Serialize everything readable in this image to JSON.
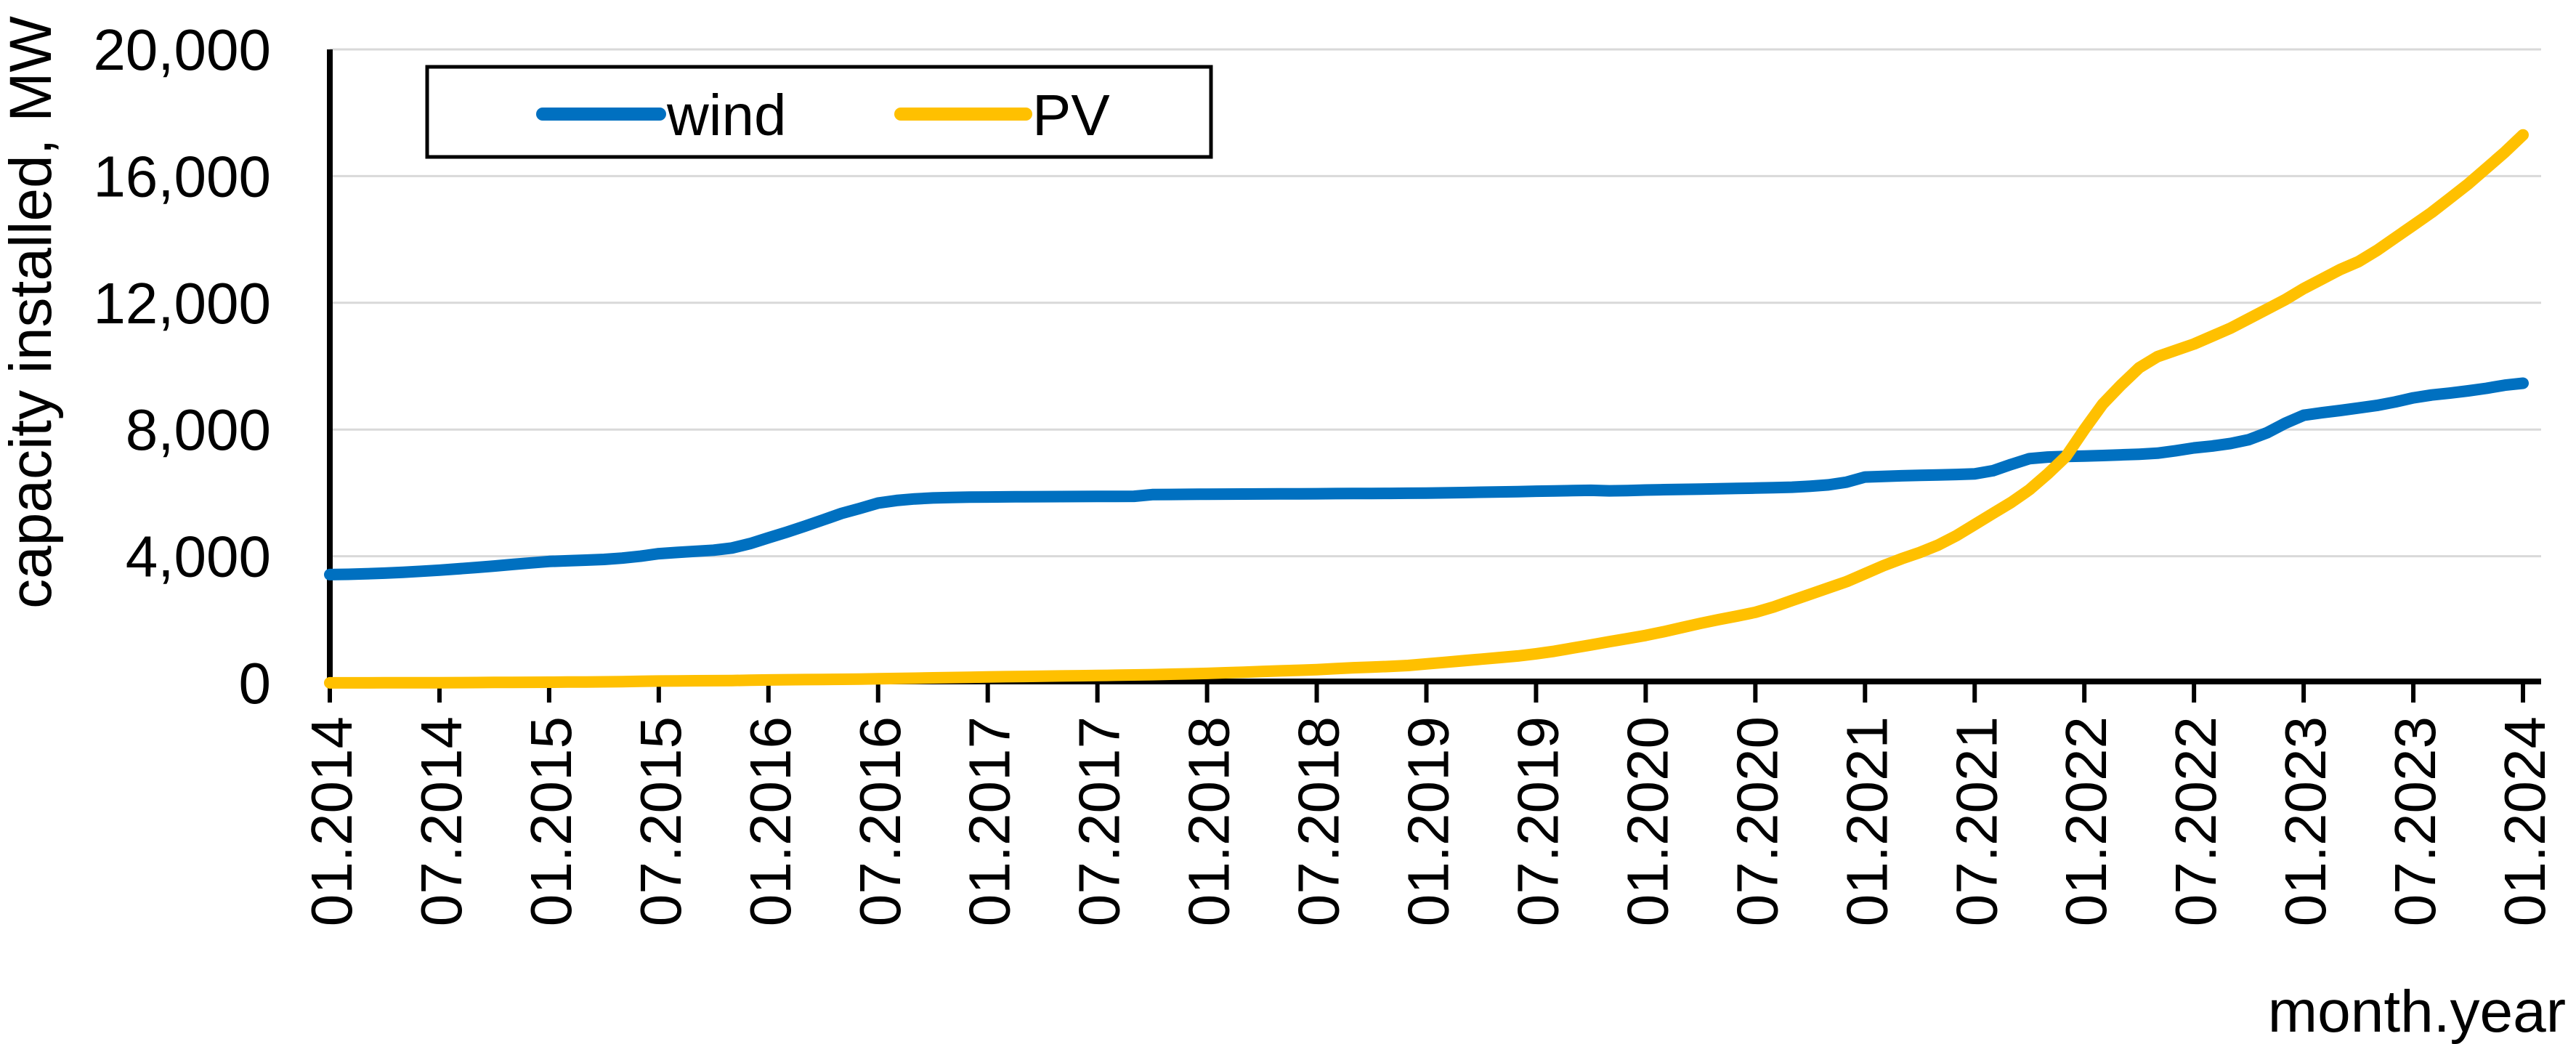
{
  "chart_data": {
    "type": "line",
    "title": "",
    "xlabel": "month.year",
    "ylabel": "capacity installed, MW",
    "x_start": "01.2014",
    "x_step": "1 month",
    "points": 121,
    "months_span": 120,
    "xlim_months": [
      0,
      120
    ],
    "ylim": [
      0,
      20000
    ],
    "y_ticks": [
      0,
      4000,
      8000,
      12000,
      16000,
      20000
    ],
    "y_tick_labels": [
      "0",
      "4,000",
      "8,000",
      "12,000",
      "16,000",
      "20,000"
    ],
    "x_tick_interval_months": 6,
    "x_tick_labels": [
      "01.2014",
      "07.2014",
      "01.2015",
      "07.2015",
      "01.2016",
      "07.2016",
      "01.2017",
      "07.2017",
      "01.2018",
      "07.2018",
      "01.2019",
      "07.2019",
      "01.2020",
      "07.2020",
      "01.2021",
      "07.2021",
      "01.2022",
      "07.2022",
      "01.2023",
      "07.2023",
      "01.2024"
    ],
    "grid": "horizontal",
    "gridline_color": "#D9D9D9",
    "axis_color": "#000000",
    "background_color": "#FFFFFF",
    "legend_position": "top-left-inside-framed",
    "series": [
      {
        "name": "wind",
        "color": "#0070C0",
        "values": [
          3420,
          3430,
          3445,
          3465,
          3490,
          3525,
          3560,
          3600,
          3645,
          3690,
          3740,
          3790,
          3835,
          3855,
          3875,
          3900,
          3940,
          4000,
          4080,
          4120,
          4155,
          4190,
          4260,
          4400,
          4580,
          4760,
          4950,
          5150,
          5350,
          5510,
          5680,
          5760,
          5810,
          5840,
          5855,
          5865,
          5870,
          5875,
          5878,
          5880,
          5882,
          5885,
          5888,
          5890,
          5892,
          5945,
          5950,
          5955,
          5958,
          5960,
          5963,
          5965,
          5968,
          5970,
          5973,
          5976,
          5979,
          5982,
          5985,
          5988,
          5992,
          6000,
          6010,
          6020,
          6030,
          6040,
          6052,
          6062,
          6072,
          6080,
          6065,
          6072,
          6090,
          6100,
          6110,
          6120,
          6130,
          6142,
          6152,
          6162,
          6180,
          6210,
          6252,
          6340,
          6500,
          6520,
          6540,
          6555,
          6565,
          6580,
          6600,
          6700,
          6900,
          7080,
          7130,
          7150,
          7160,
          7180,
          7200,
          7220,
          7252,
          7330,
          7420,
          7480,
          7560,
          7680,
          7900,
          8200,
          8450,
          8530,
          8600,
          8680,
          8760,
          8870,
          9000,
          9090,
          9150,
          9220,
          9300,
          9400,
          9460
        ]
      },
      {
        "name": "PV",
        "color": "#FFC000",
        "values": [
          2,
          2,
          3,
          4,
          5,
          6,
          8,
          10,
          12,
          15,
          18,
          21,
          24,
          27,
          30,
          35,
          40,
          50,
          60,
          65,
          68,
          70,
          75,
          85,
          95,
          100,
          105,
          110,
          115,
          120,
          130,
          140,
          150,
          160,
          170,
          180,
          190,
          198,
          205,
          213,
          220,
          228,
          235,
          243,
          252,
          262,
          275,
          287,
          300,
          320,
          340,
          360,
          380,
          400,
          420,
          450,
          480,
          500,
          520,
          550,
          600,
          650,
          700,
          750,
          800,
          850,
          920,
          1000,
          1100,
          1200,
          1300,
          1400,
          1500,
          1620,
          1750,
          1880,
          2000,
          2110,
          2230,
          2400,
          2600,
          2800,
          3000,
          3200,
          3450,
          3700,
          3920,
          4120,
          4350,
          4650,
          5000,
          5350,
          5700,
          6100,
          6600,
          7150,
          8000,
          8800,
          9400,
          9950,
          10300,
          10500,
          10700,
          10950,
          11200,
          11500,
          11800,
          12100,
          12450,
          12750,
          13050,
          13300,
          13650,
          14050,
          14450,
          14850,
          15300,
          15750,
          16250,
          16750,
          17300
        ]
      }
    ]
  },
  "legend": {
    "items": [
      {
        "label": "wind",
        "color": "#0070C0"
      },
      {
        "label": "PV",
        "color": "#FFC000"
      }
    ]
  },
  "axes": {
    "y_title": "capacity installed, MW",
    "x_title": "month.year"
  }
}
